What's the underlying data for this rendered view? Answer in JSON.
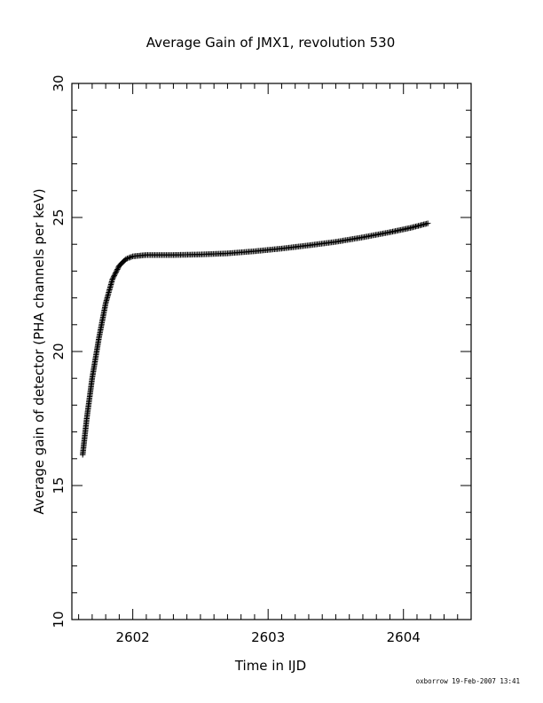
{
  "chart_data": {
    "type": "scatter",
    "title": "Average Gain of JMX1, revolution 530",
    "xlabel": "Time in IJD",
    "ylabel": "Average gain of detector (PHA channels per keV)",
    "xlim": [
      2601.55,
      2604.5
    ],
    "ylim": [
      10,
      30
    ],
    "xticks": [
      2602,
      2603,
      2604
    ],
    "yticks": [
      10,
      15,
      20,
      25,
      30
    ],
    "x_minor_step": 0.1,
    "y_minor_step": 1,
    "grid": false,
    "marker": "plus",
    "series": [
      {
        "points": [
          [
            2601.63,
            16.15
          ],
          [
            2601.66,
            17.5
          ],
          [
            2601.7,
            19.0
          ],
          [
            2601.75,
            20.5
          ],
          [
            2601.8,
            21.8
          ],
          [
            2601.85,
            22.7
          ],
          [
            2601.9,
            23.2
          ],
          [
            2601.95,
            23.45
          ],
          [
            2602.0,
            23.55
          ],
          [
            2602.1,
            23.6
          ],
          [
            2602.3,
            23.6
          ],
          [
            2602.5,
            23.62
          ],
          [
            2602.7,
            23.66
          ],
          [
            2602.9,
            23.74
          ],
          [
            2603.1,
            23.84
          ],
          [
            2603.3,
            23.96
          ],
          [
            2603.5,
            24.09
          ],
          [
            2603.7,
            24.26
          ],
          [
            2603.9,
            24.45
          ],
          [
            2604.05,
            24.61
          ],
          [
            2604.18,
            24.78
          ]
        ]
      }
    ]
  },
  "footer": {
    "stamp": "oxborrow 19-Feb-2007 13:41"
  }
}
